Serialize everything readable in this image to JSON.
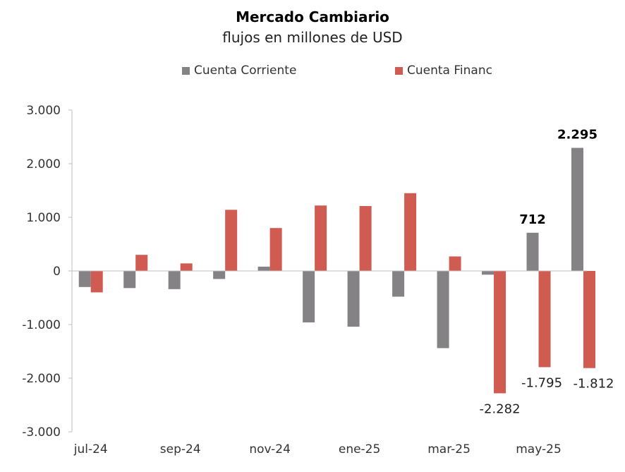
{
  "chart_data": {
    "type": "bar",
    "title": "Mercado Cambiario",
    "subtitle": "flujos en millones de USD",
    "xlabel": "",
    "ylabel": "",
    "categories": [
      "jul-24",
      "ago-24",
      "sep-24",
      "oct-24",
      "nov-24",
      "dic-24",
      "ene-25",
      "feb-25",
      "mar-25",
      "abr-25",
      "may-25",
      "jun-25"
    ],
    "tick_labels": [
      "jul-24",
      "sep-24",
      "nov-24",
      "ene-25",
      "mar-25",
      "may-25"
    ],
    "tick_indices": [
      0,
      2,
      4,
      6,
      8,
      10
    ],
    "y_ticks": [
      3000,
      2000,
      1000,
      0,
      -1000,
      -2000,
      -3000
    ],
    "y_tick_labels": [
      "3.000",
      "2.000",
      "1.000",
      "0",
      "-1.000",
      "-2.000",
      "-3.000"
    ],
    "ylim": [
      -3000,
      3000
    ],
    "series": [
      {
        "name": "Cuenta Corriente",
        "color": "#848284",
        "values": [
          -300,
          -320,
          -340,
          -150,
          80,
          -960,
          -1040,
          -480,
          -1440,
          -70,
          712,
          2295
        ]
      },
      {
        "name": "Cuenta Financ",
        "color": "#cf5b51",
        "values": [
          -400,
          300,
          140,
          1140,
          800,
          1220,
          1210,
          1450,
          270,
          -2282,
          -1795,
          -1812
        ]
      }
    ],
    "data_labels": [
      {
        "series": 0,
        "index": 10,
        "text": "712",
        "bold": true
      },
      {
        "series": 0,
        "index": 11,
        "text": "2.295",
        "bold": true
      },
      {
        "series": 1,
        "index": 9,
        "text": "-2.282",
        "bold": false
      },
      {
        "series": 1,
        "index": 10,
        "text": "-1.795",
        "bold": false
      },
      {
        "series": 1,
        "index": 11,
        "text": "-1.812",
        "bold": false
      }
    ],
    "grid": false,
    "legend_position": "top"
  }
}
